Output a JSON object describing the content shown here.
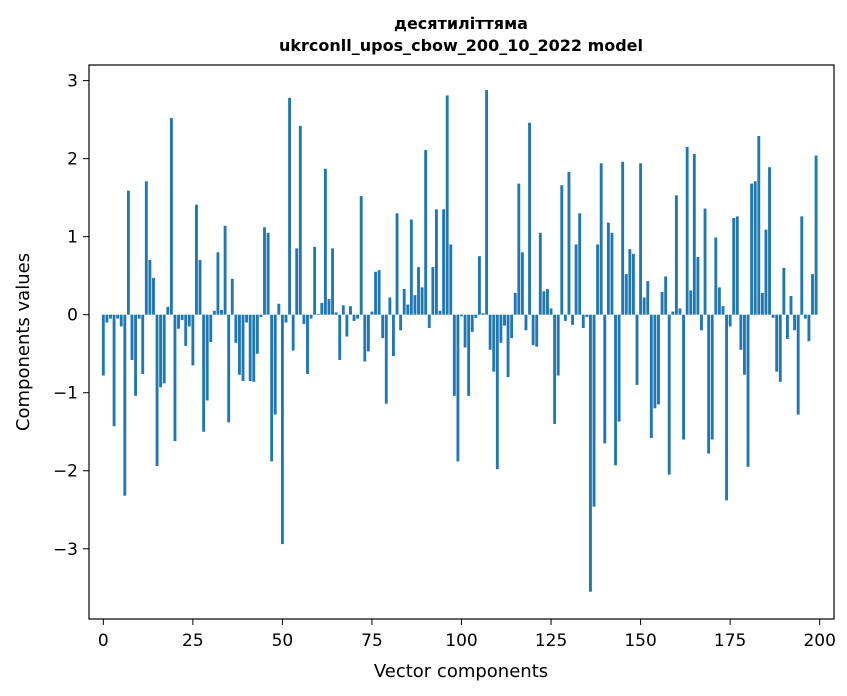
{
  "chart_data": {
    "type": "bar",
    "title_line1": "десятиліттяма",
    "title_line2": "ukrconll_upos_cbow_200_10_2022 model",
    "xlabel": "Vector components",
    "ylabel": "Components values",
    "xlim": [
      -4,
      204
    ],
    "ylim": [
      -3.9,
      3.2
    ],
    "xticks": [
      0,
      25,
      50,
      75,
      100,
      125,
      150,
      175,
      200
    ],
    "xtick_labels": [
      "0",
      "25",
      "50",
      "75",
      "100",
      "125",
      "150",
      "175",
      "200"
    ],
    "yticks": [
      -3,
      -2,
      -1,
      0,
      1,
      2,
      3
    ],
    "ytick_labels": [
      "−3",
      "−2",
      "−1",
      "0",
      "1",
      "2",
      "3"
    ],
    "bar_color": "#1f77b4",
    "grid": false,
    "values": [
      -0.78,
      -0.1,
      -0.05,
      -1.43,
      -0.05,
      -0.15,
      -2.32,
      1.59,
      -0.58,
      -1.04,
      -0.05,
      -0.76,
      1.71,
      0.7,
      0.47,
      -1.94,
      -0.93,
      -0.88,
      0.1,
      2.52,
      -1.62,
      -0.18,
      -0.07,
      -0.4,
      -0.15,
      -0.65,
      1.41,
      0.7,
      -1.5,
      -1.1,
      -0.35,
      0.05,
      0.8,
      0.06,
      1.14,
      -1.38,
      0.46,
      -0.36,
      -0.77,
      -0.85,
      -0.1,
      -0.85,
      -0.86,
      -0.5,
      -0.03,
      1.12,
      1.05,
      -1.88,
      -1.28,
      0.14,
      -2.94,
      -0.1,
      2.78,
      -0.46,
      0.85,
      2.42,
      -0.12,
      -0.76,
      -0.05,
      0.87,
      0.01,
      0.15,
      1.87,
      0.2,
      0.85,
      0.03,
      -0.58,
      0.12,
      -0.28,
      0.11,
      -0.08,
      -0.05,
      1.52,
      -0.6,
      -0.47,
      0.04,
      0.55,
      0.57,
      -0.3,
      -1.14,
      0.22,
      -0.53,
      1.3,
      -0.2,
      0.33,
      0.13,
      1.22,
      0.25,
      0.61,
      0.35,
      2.11,
      -0.17,
      0.61,
      1.35,
      0.05,
      1.35,
      2.81,
      0.9,
      -1.04,
      -1.88,
      -0.02,
      -0.42,
      -1.04,
      -0.22,
      -0.04,
      0.75,
      0.02,
      2.88,
      -0.45,
      -0.73,
      -1.98,
      -0.36,
      -0.14,
      -0.8,
      -0.3,
      0.28,
      1.68,
      0.8,
      -0.2,
      2.46,
      -0.39,
      -0.41,
      1.05,
      0.3,
      0.33,
      0.08,
      -1.4,
      -0.78,
      1.66,
      -0.08,
      1.83,
      -0.13,
      0.9,
      1.3,
      -0.17,
      -0.03,
      -3.55,
      -2.46,
      0.9,
      1.94,
      -1.65,
      1.18,
      1.05,
      -1.93,
      -1.37,
      1.96,
      0.52,
      0.84,
      0.78,
      -0.9,
      1.94,
      0.22,
      0.43,
      -1.58,
      -1.2,
      -1.15,
      0.29,
      0.49,
      -2.05,
      0.04,
      1.53,
      0.08,
      -1.6,
      2.15,
      0.31,
      2.06,
      0.74,
      -0.2,
      1.36,
      -1.78,
      -1.6,
      0.99,
      0.35,
      0.11,
      -2.38,
      -0.15,
      1.24,
      1.26,
      -0.45,
      -0.77,
      -1.95,
      1.68,
      1.71,
      2.29,
      0.28,
      1.09,
      1.89,
      -0.04,
      -0.73,
      -0.86,
      0.6,
      -0.31,
      0.24,
      -0.2,
      -1.28,
      1.26,
      -0.05,
      -0.34,
      0.52,
      2.04
    ]
  }
}
